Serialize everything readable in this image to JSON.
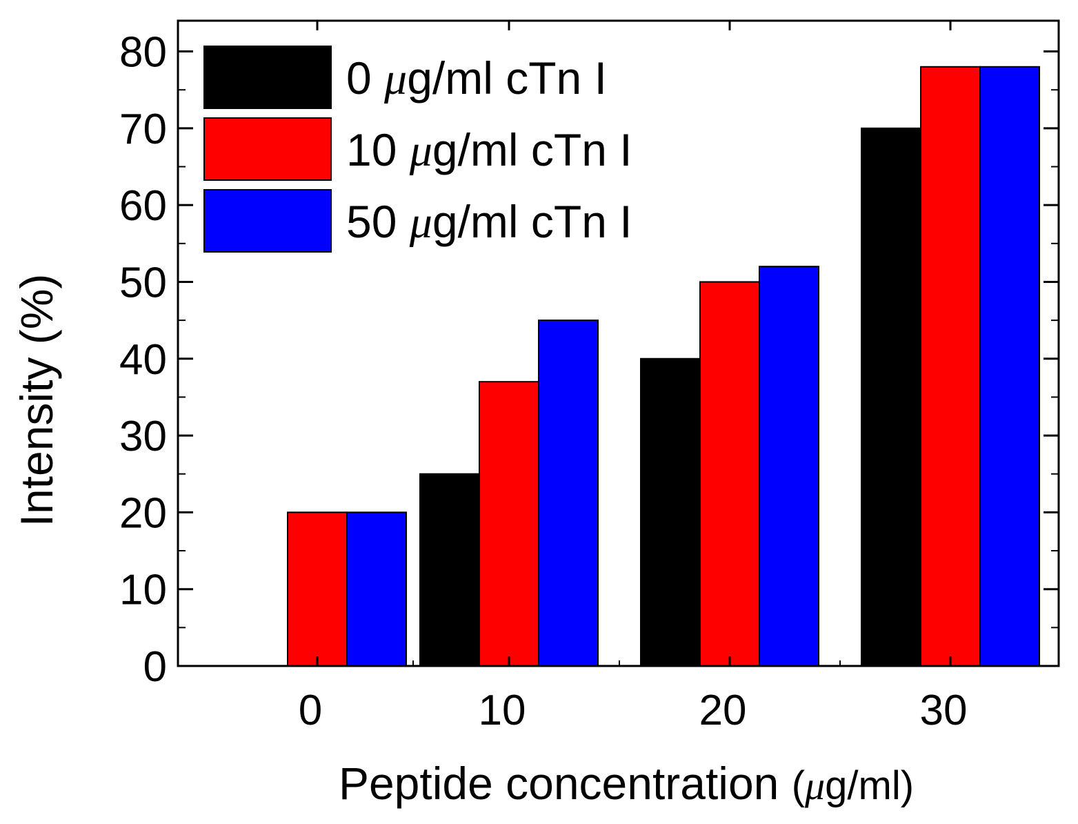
{
  "chart_data": {
    "type": "bar",
    "title": "",
    "xlabel": "Peptide concentration (μg/ml)",
    "xlabel_main": "Peptide concentration ",
    "xlabel_unit_open": "(",
    "xlabel_unit_mu": "μ",
    "xlabel_unit_rest": "g/ml)",
    "ylabel": "Intensity (%)",
    "categories": [
      "0",
      "10",
      "20",
      "30"
    ],
    "ylim": [
      0,
      84
    ],
    "yticks": [
      0,
      10,
      20,
      30,
      40,
      50,
      60,
      70,
      80
    ],
    "grid": false,
    "legend_position": "top-left",
    "series": [
      {
        "name": "0 μg/ml cTn I",
        "prefix": "0 ",
        "mu": "μ",
        "suffix": "g/ml cTn I",
        "color": "#000000",
        "values": [
          0,
          25,
          40,
          70
        ]
      },
      {
        "name": "10 μg/ml cTn I",
        "prefix": "10 ",
        "mu": "μ",
        "suffix": "g/ml cTn I",
        "color": "#ff0000",
        "values": [
          20,
          37,
          50,
          78
        ]
      },
      {
        "name": "50 μg/ml cTn I",
        "prefix": "50 ",
        "mu": "μ",
        "suffix": "g/ml cTn I",
        "color": "#0000ff",
        "values": [
          20,
          45,
          52,
          78
        ]
      }
    ]
  }
}
